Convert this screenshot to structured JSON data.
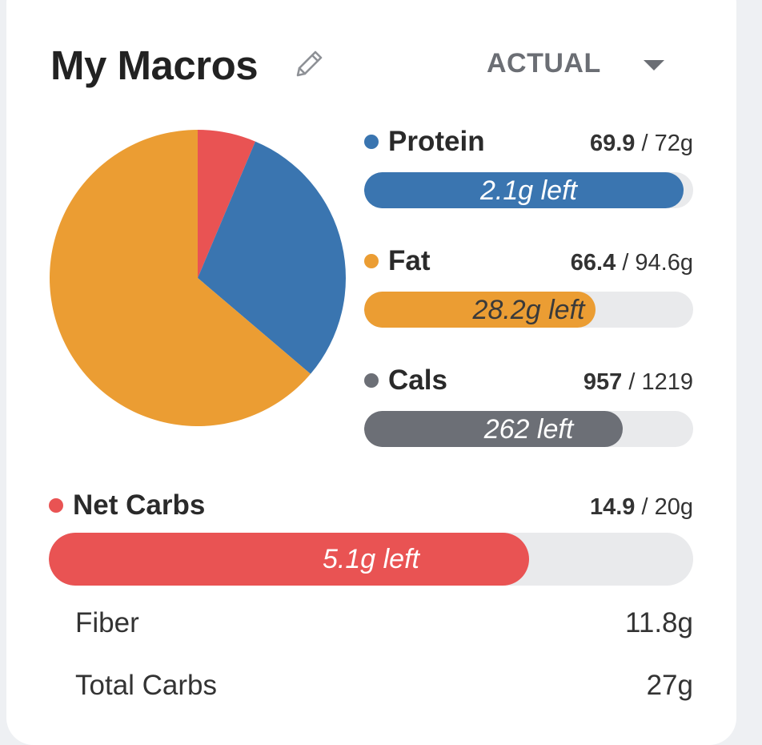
{
  "header": {
    "title": "My Macros",
    "mode_label": "ACTUAL"
  },
  "colors": {
    "protein": "#3a75b0",
    "fat": "#eb9d33",
    "cals": "#6c6f76",
    "net_carbs": "#e95353",
    "track": "#e9eaec"
  },
  "macros": {
    "protein": {
      "name": "Protein",
      "current": "69.9",
      "target": "/ 72g",
      "left": "2.1g left",
      "fraction": 0.971
    },
    "fat": {
      "name": "Fat",
      "current": "66.4",
      "target": "/ 94.6g",
      "left": "28.2g left",
      "fraction": 0.702
    },
    "cals": {
      "name": "Cals",
      "current": "957",
      "target": "/ 1219",
      "left": "262 left",
      "fraction": 0.785
    },
    "net_carbs": {
      "name": "Net Carbs",
      "current": "14.9",
      "target": "/ 20g",
      "left": "5.1g left",
      "fraction": 0.745
    }
  },
  "details": {
    "fiber": {
      "label": "Fiber",
      "value": "11.8g"
    },
    "total_carbs": {
      "label": "Total Carbs",
      "value": "27g"
    }
  },
  "chart_data": {
    "type": "pie",
    "slices": [
      {
        "label": "Net Carbs",
        "value": 14.9,
        "color": "#e95353"
      },
      {
        "label": "Protein",
        "value": 69.9,
        "color": "#3a75b0"
      },
      {
        "label": "Fat",
        "value": 149.4,
        "color": "#eb9d33"
      }
    ]
  }
}
